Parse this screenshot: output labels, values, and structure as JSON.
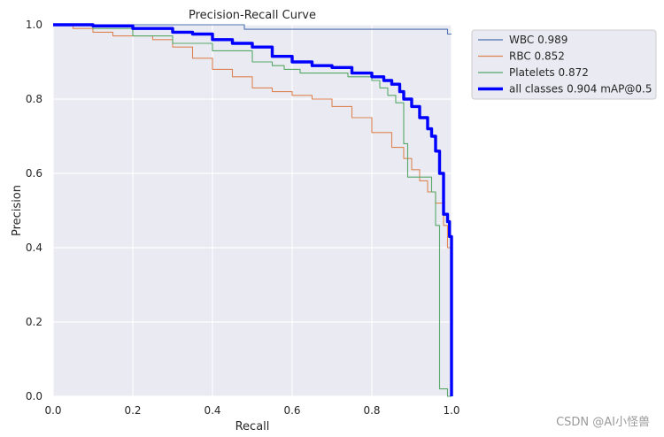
{
  "chart_data": {
    "type": "line",
    "title": "Precision-Recall Curve",
    "xlabel": "Recall",
    "ylabel": "Precision",
    "xlim": [
      0,
      1
    ],
    "ylim": [
      0,
      1
    ],
    "xticks": [
      "0.0",
      "0.2",
      "0.4",
      "0.6",
      "0.8",
      "1.0"
    ],
    "yticks": [
      "0.0",
      "0.2",
      "0.4",
      "0.6",
      "0.8",
      "1.0"
    ],
    "grid": true,
    "legend_position": "outside-top-right",
    "series": [
      {
        "name": "WBC 0.989",
        "color": "#4c72b0",
        "x": [
          0,
          0.48,
          0.48,
          0.99,
          0.99,
          1.0
        ],
        "y": [
          1.0,
          1.0,
          0.988,
          0.988,
          0.975,
          0.975
        ]
      },
      {
        "name": "RBC 0.852",
        "color": "#dd8452",
        "x": [
          0,
          0.05,
          0.1,
          0.15,
          0.2,
          0.25,
          0.3,
          0.35,
          0.4,
          0.45,
          0.5,
          0.55,
          0.6,
          0.65,
          0.7,
          0.75,
          0.8,
          0.85,
          0.88,
          0.9,
          0.92,
          0.94,
          0.96,
          0.98,
          0.99,
          1.0
        ],
        "y": [
          1.0,
          0.99,
          0.98,
          0.97,
          0.97,
          0.96,
          0.94,
          0.91,
          0.88,
          0.86,
          0.83,
          0.82,
          0.81,
          0.8,
          0.78,
          0.75,
          0.71,
          0.67,
          0.64,
          0.61,
          0.58,
          0.55,
          0.52,
          0.46,
          0.4,
          0.3
        ]
      },
      {
        "name": "Platelets 0.872",
        "color": "#55a868",
        "x": [
          0,
          0.1,
          0.2,
          0.3,
          0.4,
          0.5,
          0.55,
          0.58,
          0.62,
          0.62,
          0.7,
          0.74,
          0.78,
          0.8,
          0.82,
          0.84,
          0.86,
          0.88,
          0.88,
          0.89,
          0.89,
          0.94,
          0.95,
          0.96,
          0.97,
          0.97,
          0.99,
          1.0
        ],
        "y": [
          1.0,
          0.99,
          0.97,
          0.95,
          0.93,
          0.9,
          0.89,
          0.88,
          0.88,
          0.87,
          0.87,
          0.86,
          0.86,
          0.85,
          0.83,
          0.81,
          0.79,
          0.76,
          0.68,
          0.62,
          0.59,
          0.59,
          0.55,
          0.46,
          0.32,
          0.02,
          0.0,
          0.0
        ]
      },
      {
        "name": "all classes 0.904 mAP@0.5",
        "color": "#0000ff",
        "thick": true,
        "x": [
          0,
          0.1,
          0.2,
          0.3,
          0.35,
          0.4,
          0.45,
          0.5,
          0.55,
          0.6,
          0.65,
          0.7,
          0.75,
          0.8,
          0.83,
          0.85,
          0.87,
          0.88,
          0.9,
          0.92,
          0.94,
          0.95,
          0.96,
          0.97,
          0.98,
          0.99,
          0.995,
          1.0,
          1.0
        ],
        "y": [
          1.0,
          0.997,
          0.99,
          0.98,
          0.975,
          0.96,
          0.95,
          0.94,
          0.915,
          0.9,
          0.89,
          0.885,
          0.87,
          0.86,
          0.85,
          0.84,
          0.82,
          0.8,
          0.78,
          0.75,
          0.72,
          0.7,
          0.66,
          0.6,
          0.49,
          0.47,
          0.43,
          0.33,
          0.0
        ]
      }
    ]
  },
  "watermark": "CSDN @AI小怪兽"
}
